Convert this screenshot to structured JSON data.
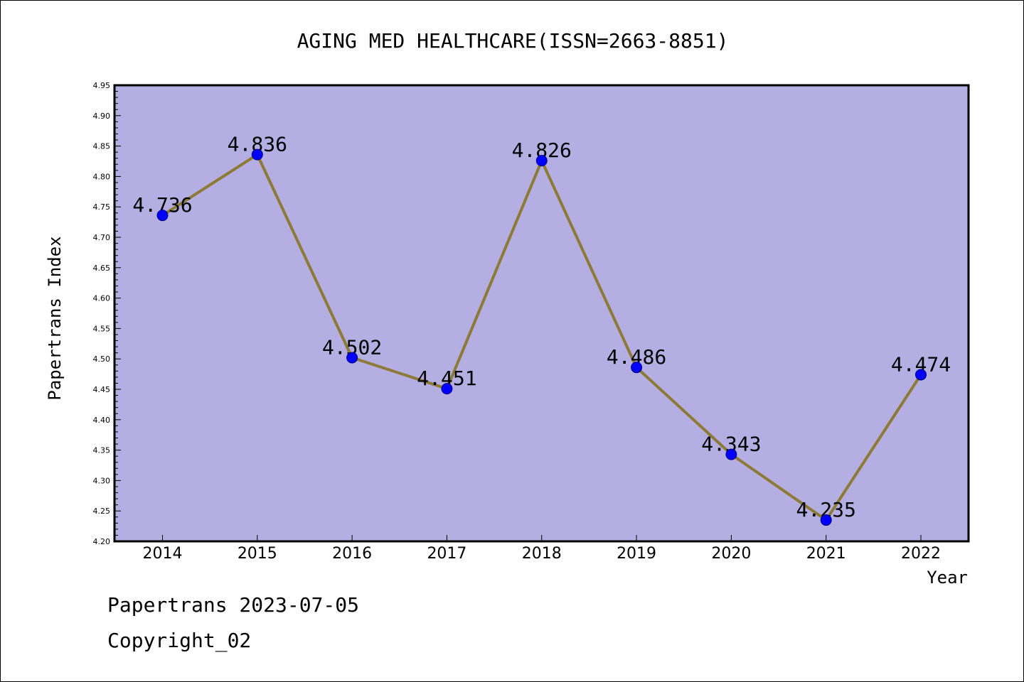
{
  "footer": {
    "line1": "Papertrans 2023-07-05",
    "line2": "Copyright_02"
  },
  "colors": {
    "plot_background": "#b5aee2",
    "line": "#8c7a36",
    "marker": "#0000ff",
    "marker_stroke": "#000080",
    "axis": "#000000"
  },
  "chart_data": {
    "type": "line",
    "title": "AGING MED HEALTHCARE(ISSN=2663-8851)",
    "xlabel": "Year",
    "ylabel": "Papertrans Index",
    "categories": [
      "2014",
      "2015",
      "2016",
      "2017",
      "2018",
      "2019",
      "2020",
      "2021",
      "2022"
    ],
    "series": [
      {
        "values": [
          4.736,
          4.836,
          4.502,
          4.451,
          4.826,
          4.486,
          4.343,
          4.235,
          4.474
        ],
        "data_labels": [
          "4.736",
          "4.836",
          "4.502",
          "4.451",
          "4.826",
          "4.486",
          "4.343",
          "4.235",
          "4.474"
        ]
      }
    ],
    "ylim": [
      4.2,
      4.95
    ],
    "yticks": [
      "4.20",
      "4.25",
      "4.30",
      "4.35",
      "4.40",
      "4.45",
      "4.50",
      "4.55",
      "4.60",
      "4.65",
      "4.70",
      "4.75",
      "4.80",
      "4.85",
      "4.90",
      "4.95"
    ],
    "grid": false,
    "legend": "none"
  }
}
